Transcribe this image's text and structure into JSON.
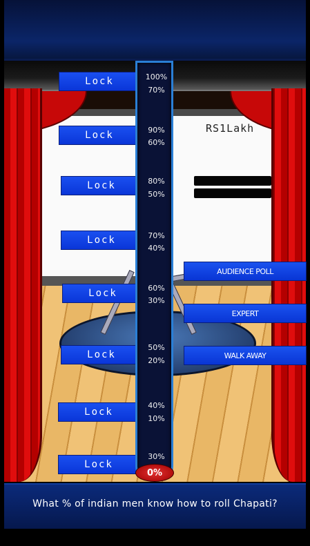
{
  "prize": {
    "amount": "RS1Lakh"
  },
  "lock_label": "Lock",
  "rows": [
    {
      "upper": "100%",
      "lower": "70%"
    },
    {
      "upper": "90%",
      "lower": "60%"
    },
    {
      "upper": "80%",
      "lower": "50%"
    },
    {
      "upper": "70%",
      "lower": "40%"
    },
    {
      "upper": "60%",
      "lower": "30%"
    },
    {
      "upper": "50%",
      "lower": "20%"
    },
    {
      "upper": "40%",
      "lower": "10%"
    },
    {
      "upper": "30%",
      "lower": ""
    }
  ],
  "meter_current": "0%",
  "lifelines": {
    "audience_poll": "AUDIENCE POLL",
    "expert": "EXPERT",
    "walk_away": "WALK AWAY"
  },
  "question": "What % of indian men know how to roll Chapati?",
  "colors": {
    "button_blue": "#1a4ff0",
    "meter_border": "#2a7fd6",
    "curtain_red": "#e00d0d",
    "zero_badge": "#c01818"
  }
}
